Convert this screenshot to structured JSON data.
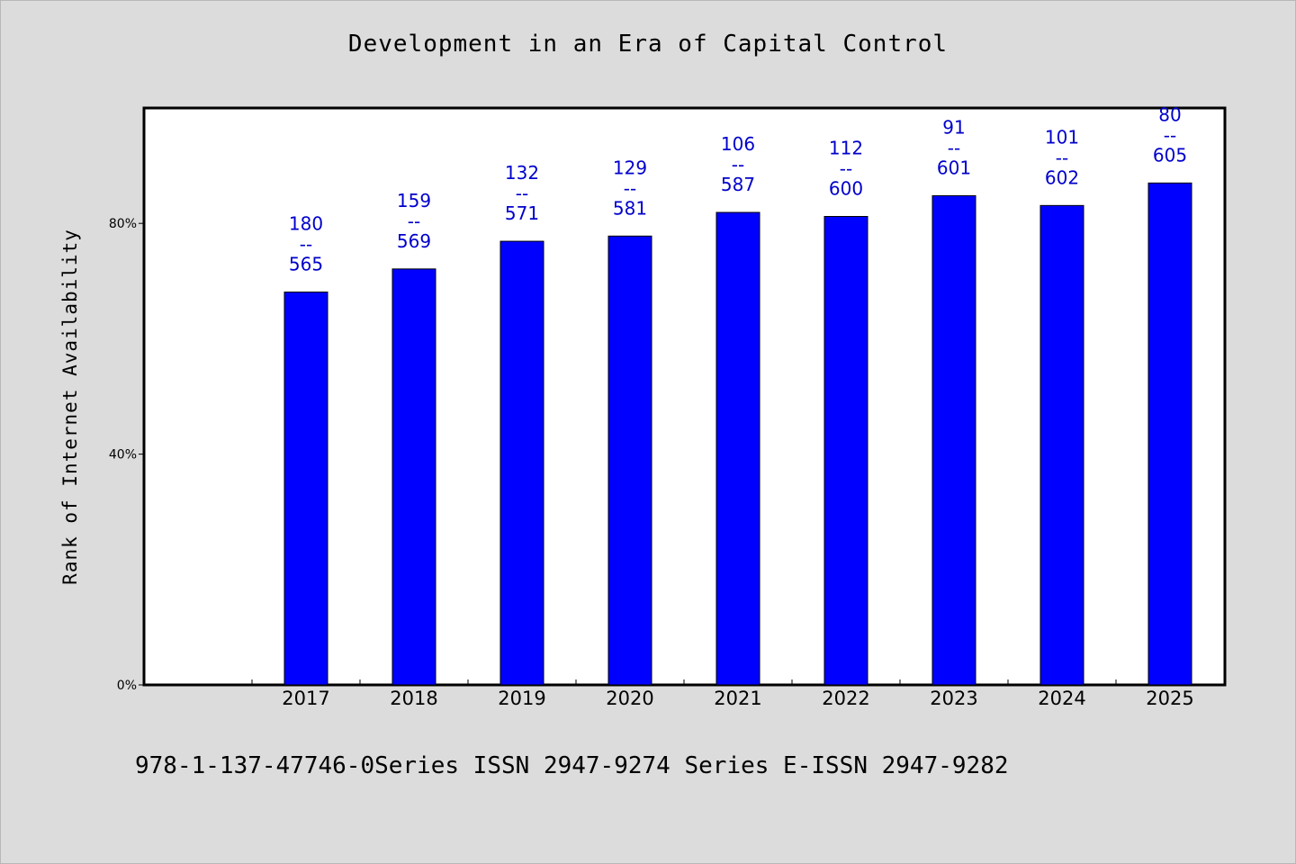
{
  "chart_data": {
    "type": "bar",
    "title": "Development in an Era of Capital Control",
    "xlabel": "",
    "ylabel": "Rank of Internet Availability",
    "categories": [
      "2017",
      "2018",
      "2019",
      "2020",
      "2021",
      "2022",
      "2023",
      "2024",
      "2025"
    ],
    "values": [
      68.1,
      72.1,
      76.9,
      77.8,
      81.9,
      81.2,
      84.8,
      83.1,
      87.0
    ],
    "data_labels": [
      {
        "top": "180",
        "mid": "--",
        "bottom": "565"
      },
      {
        "top": "159",
        "mid": "--",
        "bottom": "569"
      },
      {
        "top": "132",
        "mid": "--",
        "bottom": "571"
      },
      {
        "top": "129",
        "mid": "--",
        "bottom": "581"
      },
      {
        "top": "106",
        "mid": "--",
        "bottom": "587"
      },
      {
        "top": "112",
        "mid": "--",
        "bottom": "600"
      },
      {
        "top": "91",
        "mid": "--",
        "bottom": "601"
      },
      {
        "top": "101",
        "mid": "--",
        "bottom": "602"
      },
      {
        "top": "80",
        "mid": "--",
        "bottom": "605"
      }
    ],
    "yticks": [
      {
        "value": 0,
        "label": "0%"
      },
      {
        "value": 40,
        "label": "40%"
      },
      {
        "value": 80,
        "label": "80%"
      }
    ],
    "ylim": [
      0,
      100
    ],
    "grid": false,
    "colors": {
      "bar": "#0000ff",
      "bar_edge": "#000000",
      "label": "#0000cc",
      "plot_bg": "#ffffff",
      "page_bg": "#dcdcdc"
    }
  },
  "footer": "978-1-137-47746-0Series ISSN 2947-9274 Series E-ISSN 2947-9282"
}
